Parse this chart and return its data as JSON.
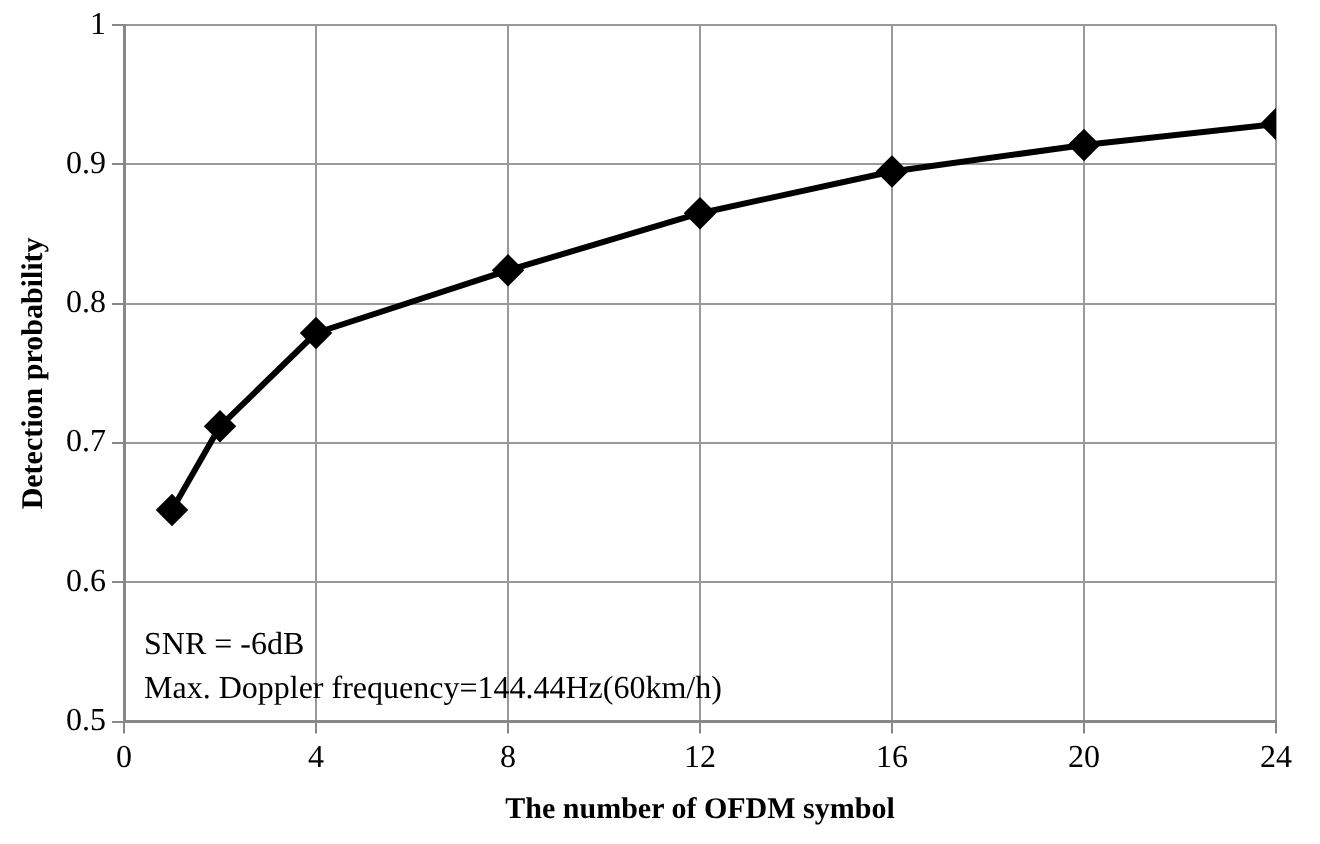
{
  "chart_data": {
    "type": "line",
    "xlabel": "The number of OFDM symbol",
    "ylabel": "Detection probability",
    "x": [
      1,
      2,
      4,
      8,
      12,
      16,
      20,
      24
    ],
    "series": [
      {
        "color": "#000000",
        "values": [
          0.652,
          0.712,
          0.779,
          0.824,
          0.865,
          0.895,
          0.914,
          0.929
        ]
      }
    ],
    "xlim": [
      0,
      24
    ],
    "xticks": [
      0,
      4,
      8,
      12,
      16,
      20,
      24
    ],
    "ylim": [
      0.5,
      1
    ],
    "yticks": [
      0.5,
      0.6,
      0.7,
      0.8,
      0.9,
      1
    ],
    "grid": true,
    "legend": false,
    "marker": "diamond",
    "line_style": "solid",
    "annotations": [
      "SNR = -6dB",
      "Max. Doppler frequency=144.44Hz(60km/h)"
    ]
  }
}
